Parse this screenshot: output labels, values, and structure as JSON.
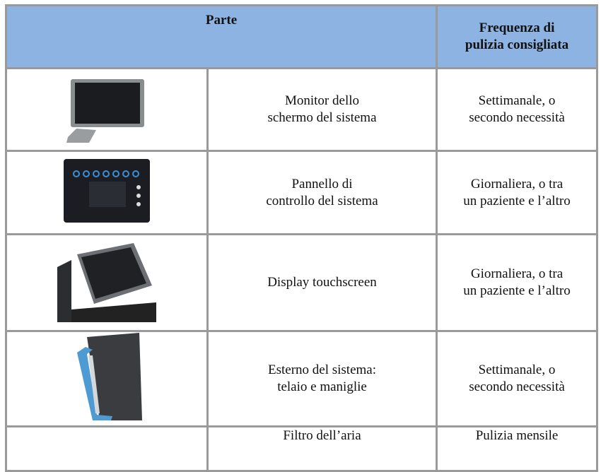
{
  "table": {
    "header": [
      "Parte",
      [
        "Frequenza di",
        "pulizia consigliata"
      ]
    ],
    "rows": [
      [
        [
          "Monitor dello",
          "schermo del sistema"
        ],
        [
          "Settimanale, o",
          "secondo necessità"
        ]
      ],
      [
        [
          "Pannello di",
          "controllo del sistema"
        ],
        [
          "Giornaliera, o tra",
          "un paziente e l’altro"
        ]
      ],
      [
        [
          "Display touchscreen"
        ],
        [
          "Giornaliera, o tra",
          "un paziente e l’altro"
        ]
      ],
      [
        [
          "Esterno del sistema:",
          "telaio e maniglie"
        ],
        [
          "Settimanale, o",
          "secondo necessità"
        ]
      ],
      [
        [
          "Filtro dell’aria"
        ],
        [
          "Pulizia mensile"
        ]
      ]
    ]
  }
}
